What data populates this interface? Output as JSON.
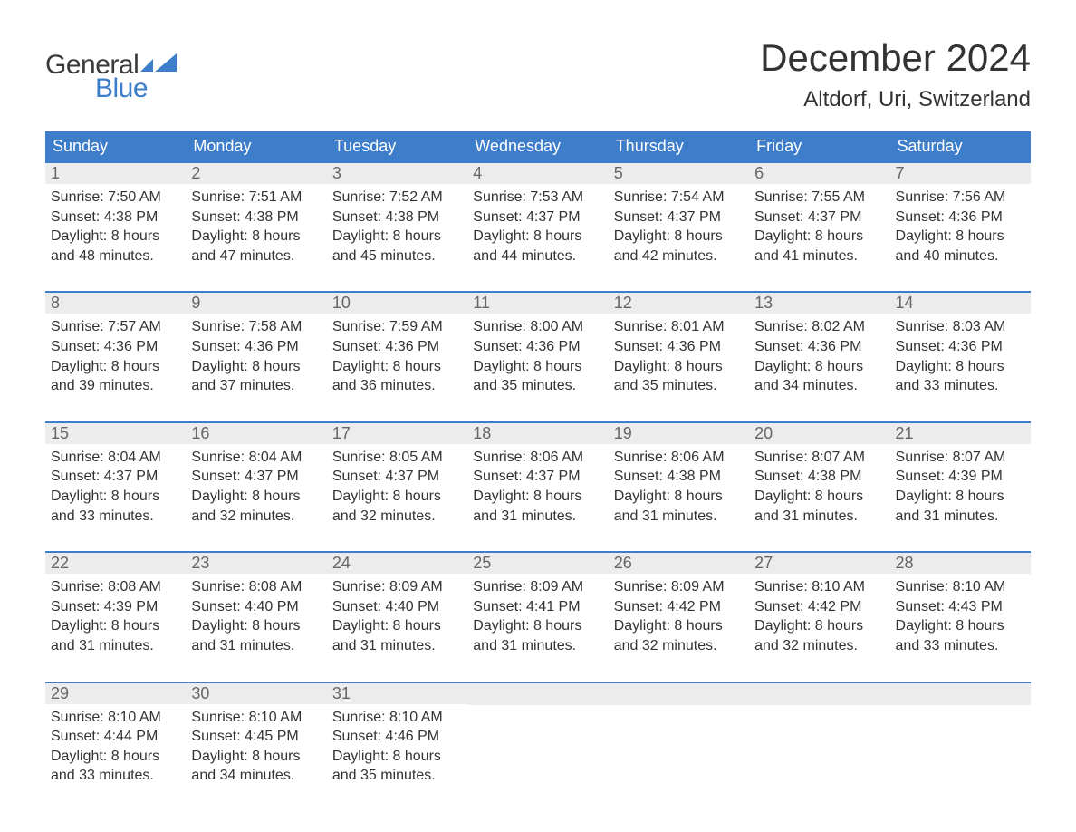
{
  "brand": {
    "word1": "General",
    "word2": "Blue"
  },
  "title": "December 2024",
  "location": "Altdorf, Uri, Switzerland",
  "colors": {
    "header_bg": "#3d7dca",
    "header_text": "#ffffff",
    "daynum_bg": "#ececec",
    "daynum_text": "#666666",
    "body_text": "#333333",
    "border": "#3d7dca",
    "page_bg": "#ffffff"
  },
  "labels": {
    "sunrise": "Sunrise:",
    "sunset": "Sunset:",
    "daylight": "Daylight:"
  },
  "day_names": [
    "Sunday",
    "Monday",
    "Tuesday",
    "Wednesday",
    "Thursday",
    "Friday",
    "Saturday"
  ],
  "weeks": [
    [
      {
        "n": "1",
        "sr": "7:50 AM",
        "ss": "4:38 PM",
        "d1": "8 hours",
        "d2": "and 48 minutes."
      },
      {
        "n": "2",
        "sr": "7:51 AM",
        "ss": "4:38 PM",
        "d1": "8 hours",
        "d2": "and 47 minutes."
      },
      {
        "n": "3",
        "sr": "7:52 AM",
        "ss": "4:38 PM",
        "d1": "8 hours",
        "d2": "and 45 minutes."
      },
      {
        "n": "4",
        "sr": "7:53 AM",
        "ss": "4:37 PM",
        "d1": "8 hours",
        "d2": "and 44 minutes."
      },
      {
        "n": "5",
        "sr": "7:54 AM",
        "ss": "4:37 PM",
        "d1": "8 hours",
        "d2": "and 42 minutes."
      },
      {
        "n": "6",
        "sr": "7:55 AM",
        "ss": "4:37 PM",
        "d1": "8 hours",
        "d2": "and 41 minutes."
      },
      {
        "n": "7",
        "sr": "7:56 AM",
        "ss": "4:36 PM",
        "d1": "8 hours",
        "d2": "and 40 minutes."
      }
    ],
    [
      {
        "n": "8",
        "sr": "7:57 AM",
        "ss": "4:36 PM",
        "d1": "8 hours",
        "d2": "and 39 minutes."
      },
      {
        "n": "9",
        "sr": "7:58 AM",
        "ss": "4:36 PM",
        "d1": "8 hours",
        "d2": "and 37 minutes."
      },
      {
        "n": "10",
        "sr": "7:59 AM",
        "ss": "4:36 PM",
        "d1": "8 hours",
        "d2": "and 36 minutes."
      },
      {
        "n": "11",
        "sr": "8:00 AM",
        "ss": "4:36 PM",
        "d1": "8 hours",
        "d2": "and 35 minutes."
      },
      {
        "n": "12",
        "sr": "8:01 AM",
        "ss": "4:36 PM",
        "d1": "8 hours",
        "d2": "and 35 minutes."
      },
      {
        "n": "13",
        "sr": "8:02 AM",
        "ss": "4:36 PM",
        "d1": "8 hours",
        "d2": "and 34 minutes."
      },
      {
        "n": "14",
        "sr": "8:03 AM",
        "ss": "4:36 PM",
        "d1": "8 hours",
        "d2": "and 33 minutes."
      }
    ],
    [
      {
        "n": "15",
        "sr": "8:04 AM",
        "ss": "4:37 PM",
        "d1": "8 hours",
        "d2": "and 33 minutes."
      },
      {
        "n": "16",
        "sr": "8:04 AM",
        "ss": "4:37 PM",
        "d1": "8 hours",
        "d2": "and 32 minutes."
      },
      {
        "n": "17",
        "sr": "8:05 AM",
        "ss": "4:37 PM",
        "d1": "8 hours",
        "d2": "and 32 minutes."
      },
      {
        "n": "18",
        "sr": "8:06 AM",
        "ss": "4:37 PM",
        "d1": "8 hours",
        "d2": "and 31 minutes."
      },
      {
        "n": "19",
        "sr": "8:06 AM",
        "ss": "4:38 PM",
        "d1": "8 hours",
        "d2": "and 31 minutes."
      },
      {
        "n": "20",
        "sr": "8:07 AM",
        "ss": "4:38 PM",
        "d1": "8 hours",
        "d2": "and 31 minutes."
      },
      {
        "n": "21",
        "sr": "8:07 AM",
        "ss": "4:39 PM",
        "d1": "8 hours",
        "d2": "and 31 minutes."
      }
    ],
    [
      {
        "n": "22",
        "sr": "8:08 AM",
        "ss": "4:39 PM",
        "d1": "8 hours",
        "d2": "and 31 minutes."
      },
      {
        "n": "23",
        "sr": "8:08 AM",
        "ss": "4:40 PM",
        "d1": "8 hours",
        "d2": "and 31 minutes."
      },
      {
        "n": "24",
        "sr": "8:09 AM",
        "ss": "4:40 PM",
        "d1": "8 hours",
        "d2": "and 31 minutes."
      },
      {
        "n": "25",
        "sr": "8:09 AM",
        "ss": "4:41 PM",
        "d1": "8 hours",
        "d2": "and 31 minutes."
      },
      {
        "n": "26",
        "sr": "8:09 AM",
        "ss": "4:42 PM",
        "d1": "8 hours",
        "d2": "and 32 minutes."
      },
      {
        "n": "27",
        "sr": "8:10 AM",
        "ss": "4:42 PM",
        "d1": "8 hours",
        "d2": "and 32 minutes."
      },
      {
        "n": "28",
        "sr": "8:10 AM",
        "ss": "4:43 PM",
        "d1": "8 hours",
        "d2": "and 33 minutes."
      }
    ],
    [
      {
        "n": "29",
        "sr": "8:10 AM",
        "ss": "4:44 PM",
        "d1": "8 hours",
        "d2": "and 33 minutes."
      },
      {
        "n": "30",
        "sr": "8:10 AM",
        "ss": "4:45 PM",
        "d1": "8 hours",
        "d2": "and 34 minutes."
      },
      {
        "n": "31",
        "sr": "8:10 AM",
        "ss": "4:46 PM",
        "d1": "8 hours",
        "d2": "and 35 minutes."
      },
      null,
      null,
      null,
      null
    ]
  ]
}
